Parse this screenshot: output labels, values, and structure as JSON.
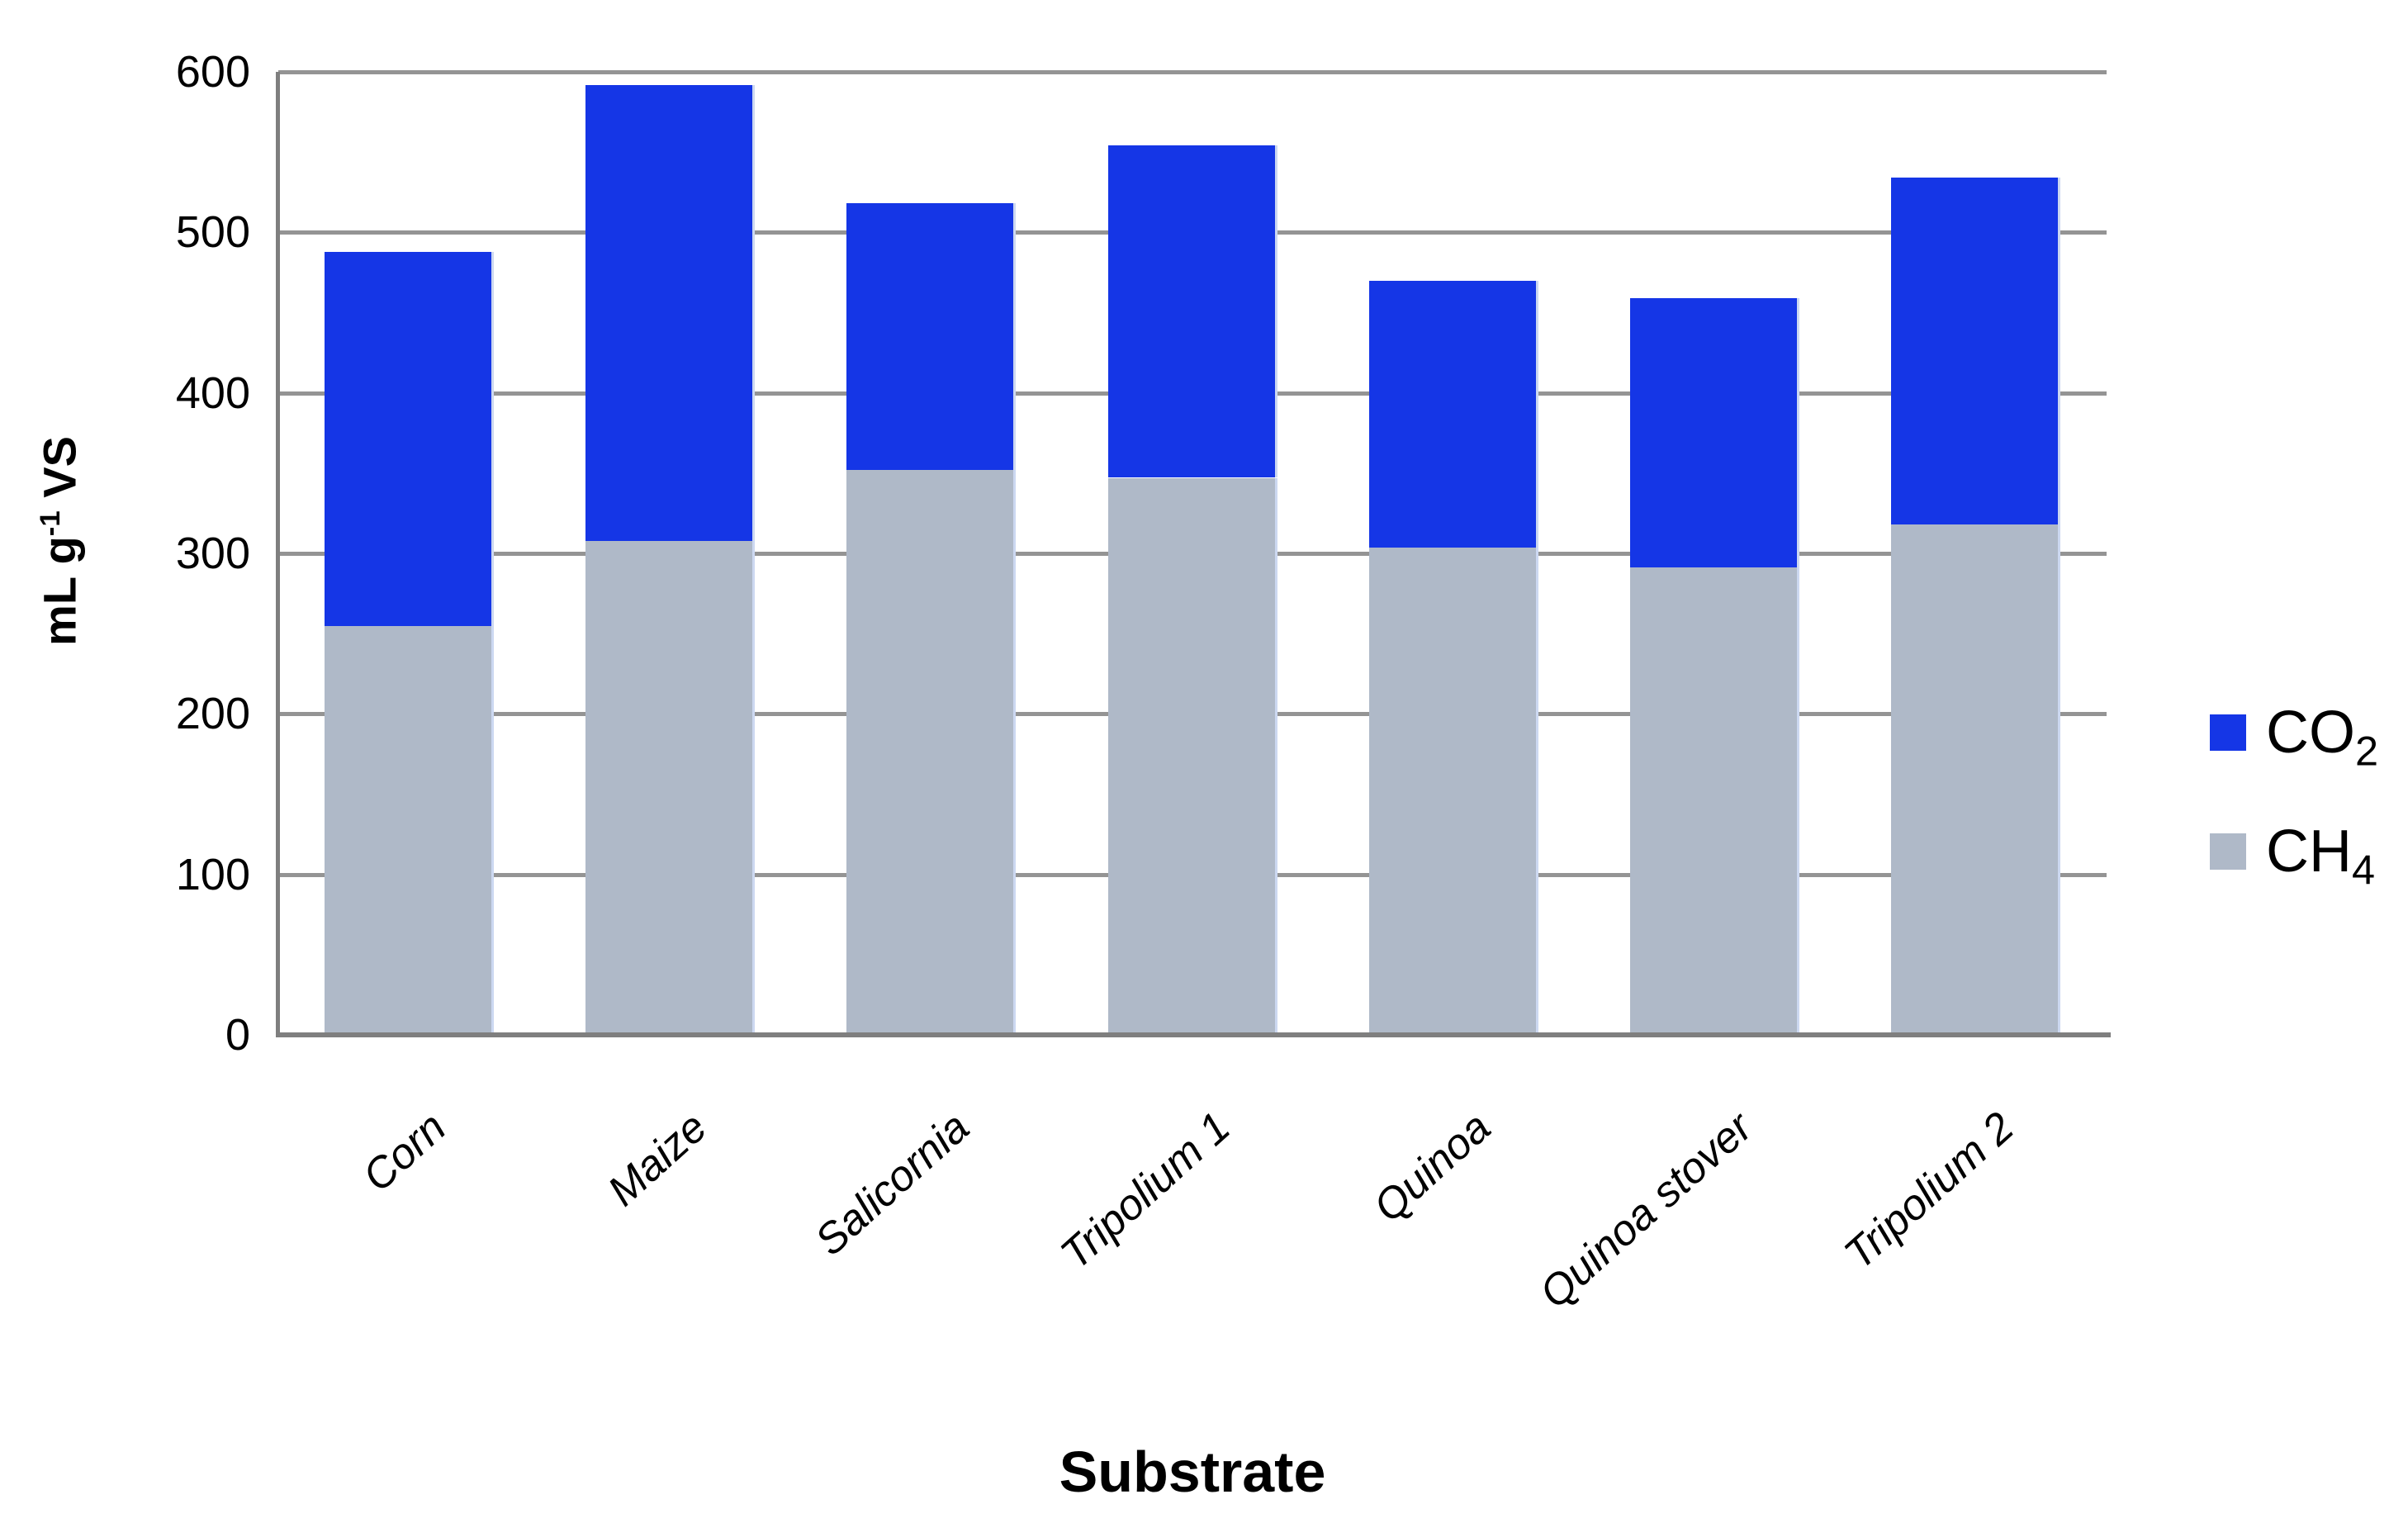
{
  "chart_data": {
    "type": "bar",
    "stacked": true,
    "title": "",
    "categories": [
      "Corn",
      "Maize",
      "Salicornia",
      "Tripolium 1",
      "Quinoa",
      "Quinoa stover",
      "Tripolium 2"
    ],
    "series": [
      {
        "name": "CH₄",
        "label_main": "CH",
        "label_sub": "4",
        "color": "#AFB9C8",
        "values": [
          255,
          308,
          352,
          347,
          304,
          291,
          318
        ]
      },
      {
        "name": "CO₂",
        "label_main": "CO",
        "label_sub": "2",
        "color": "#1536E6",
        "values": [
          233,
          284,
          166,
          207,
          166,
          168,
          216
        ]
      }
    ],
    "stack_totals": [
      488,
      592,
      518,
      554,
      470,
      459,
      534
    ],
    "xlabel": "Substrate",
    "ylabel": "mL g⁻¹ VS",
    "ylabel_parts": {
      "prefix": "mL g",
      "sup": "-1",
      "suffix": " VS"
    },
    "ylim": [
      0,
      600
    ],
    "yticks": [
      0,
      100,
      200,
      300,
      400,
      500,
      600
    ],
    "grid": "horizontal",
    "legend_position": "right",
    "legend_order": [
      "CO₂",
      "CH₄"
    ]
  },
  "colors": {
    "co2": "#1536E6",
    "ch4": "#AFB9C8",
    "gridline": "#949494",
    "axis": "#7F7F7F",
    "text": "#000000",
    "background": "#FFFFFF"
  }
}
